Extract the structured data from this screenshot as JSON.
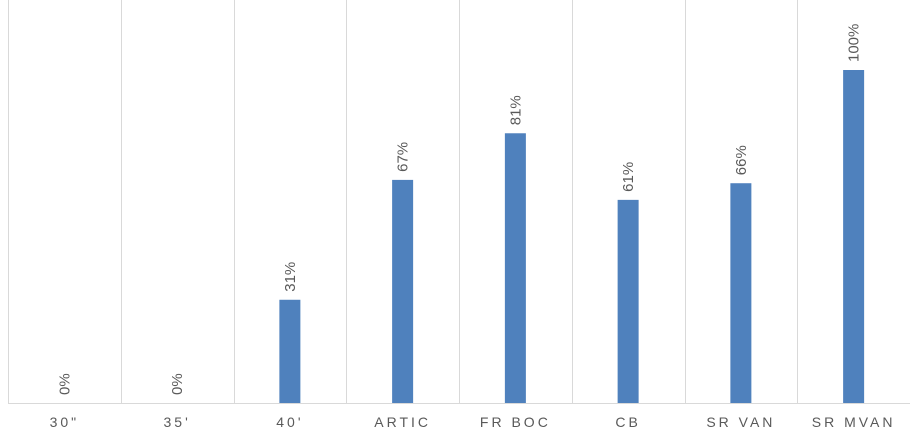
{
  "chart_data": {
    "type": "bar",
    "categories": [
      "30\"",
      "35'",
      "40'",
      "ARTIC",
      "FR BOC",
      "CB",
      "SR VAN",
      "SR MVAN"
    ],
    "values": [
      0,
      0,
      31,
      67,
      81,
      61,
      66,
      100
    ],
    "data_labels": [
      "0%",
      "0%",
      "31%",
      "67%",
      "81%",
      "61%",
      "66%",
      "100%"
    ],
    "value_unit": "percent",
    "ylim": [
      0,
      100
    ],
    "grid": {
      "vertical_separators": true,
      "horizontal": false
    },
    "legend": "none",
    "colors": {
      "bar": "#4f81bd",
      "grid": "#d9d9d9",
      "text": "#595959"
    }
  }
}
